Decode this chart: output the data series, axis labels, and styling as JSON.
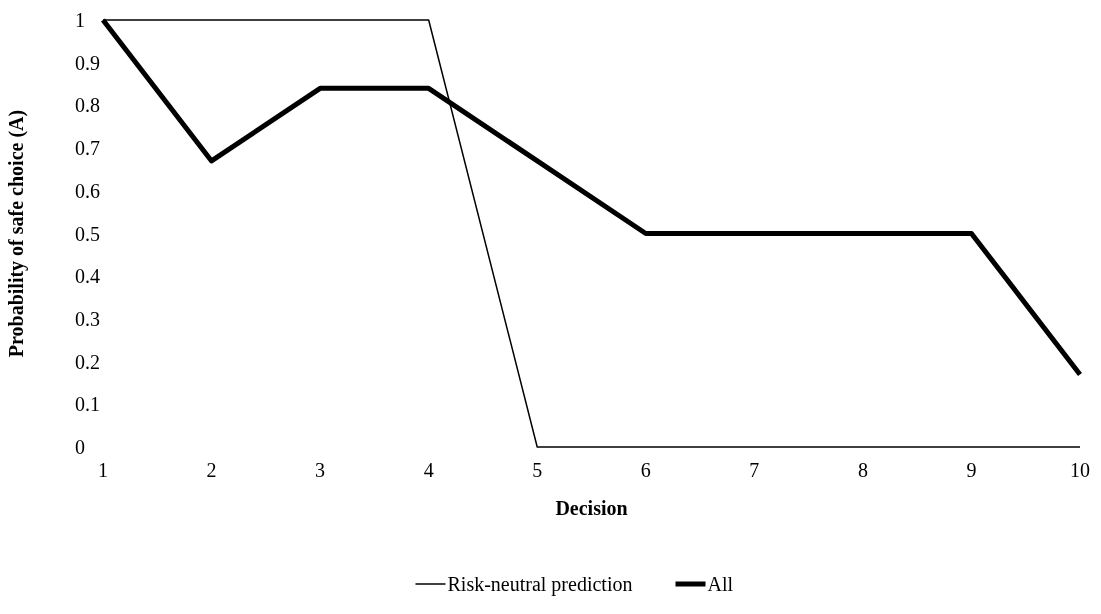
{
  "chart_data": {
    "type": "line",
    "xlabel": "Decision",
    "ylabel": "Probability of safe choice (A)",
    "x": [
      1,
      2,
      3,
      4,
      5,
      6,
      7,
      8,
      9,
      10
    ],
    "series": [
      {
        "name": "Risk-neutral prediction",
        "color": "#000000",
        "values": [
          1,
          1,
          1,
          1,
          0,
          0,
          0,
          0,
          0,
          0
        ]
      },
      {
        "name": "All",
        "color": "#000000",
        "values": [
          1,
          0.67,
          0.84,
          0.84,
          0.67,
          0.5,
          0.5,
          0.5,
          0.5,
          0.17
        ]
      }
    ],
    "xlim": [
      1,
      10
    ],
    "xticks": [
      1,
      2,
      3,
      4,
      5,
      6,
      7,
      8,
      9,
      10
    ],
    "ylim": [
      0,
      1
    ],
    "yticks": [
      0,
      0.1,
      0.2,
      0.3,
      0.4,
      0.5,
      0.6,
      0.7,
      0.8,
      0.9,
      1
    ],
    "grid": false,
    "legend": "bottom",
    "marker": "none",
    "line_style": "solid"
  }
}
